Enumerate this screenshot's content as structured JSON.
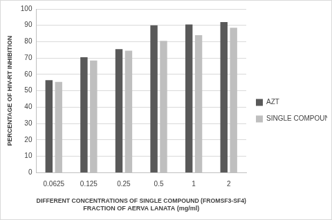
{
  "chart_data": {
    "type": "bar",
    "x_label": "DIFFERENT CONCENTRATIONS OF SINGLE COMPOUND (FROMSF3-SF4) FRACTION OF AERVA LANATA (mg/ml)",
    "y_label": "PERCENTAGE OF HIV-RT INHIBITION",
    "categories": [
      "0.0625",
      "0.125",
      "0.25",
      "0.5",
      "1",
      "2"
    ],
    "series": [
      {
        "name": "AZT",
        "color": "#595959",
        "values": [
          56.5,
          70.5,
          75.5,
          90,
          90.5,
          92
        ]
      },
      {
        "name": "SINGLE COMPOUND",
        "color": "#bfbfbf",
        "values": [
          55.5,
          68.5,
          74.5,
          80.5,
          84,
          88.5
        ]
      }
    ],
    "ylim": [
      0,
      100
    ],
    "yticks": [
      0,
      10,
      20,
      30,
      40,
      50,
      60,
      70,
      80,
      90,
      100
    ],
    "grid": true,
    "legend": "right"
  }
}
